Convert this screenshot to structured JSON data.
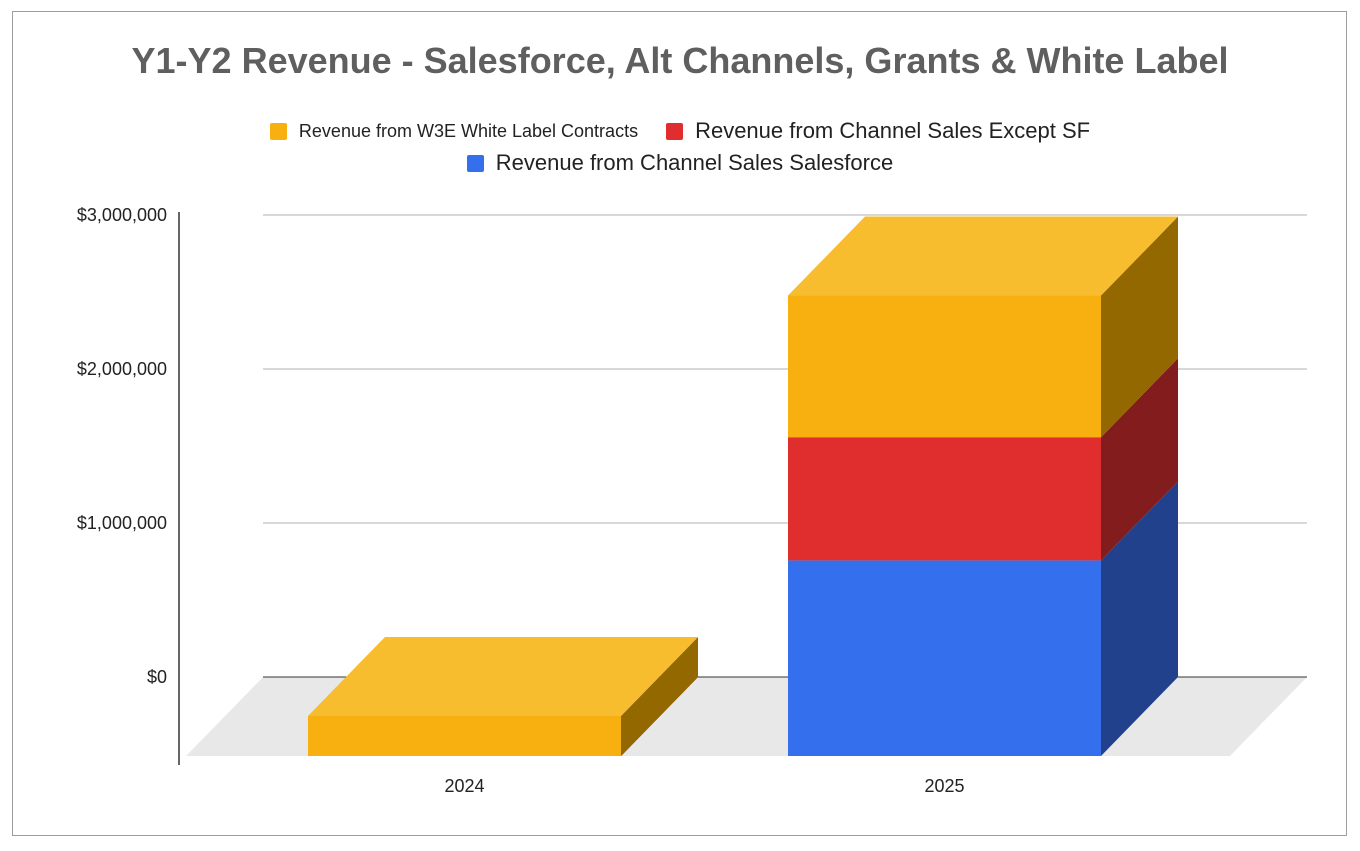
{
  "chart_data": {
    "type": "bar",
    "stacked": true,
    "three_d": true,
    "title": "Y1-Y2 Revenue - Salesforce, Alt Channels, Grants & White Label",
    "xlabel": "",
    "ylabel": "",
    "categories": [
      "2024",
      "2025"
    ],
    "series": [
      {
        "name": "Revenue from Channel Sales Salesforce",
        "values": [
          0,
          1270000
        ],
        "color": "#3470ee",
        "side_color": "#21418c",
        "top_color": "#5a8cf2"
      },
      {
        "name": "Revenue from Channel Sales Except SF",
        "values": [
          0,
          800000
        ],
        "color": "#e02d2d",
        "side_color": "#831c1c",
        "top_color": "#e85a5a"
      },
      {
        "name": "Revenue from W3E White Label Contracts",
        "values": [
          260000,
          920000
        ],
        "color": "#f8b011",
        "side_color": "#946800",
        "top_color": "#f8bd2e"
      }
    ],
    "ylim": [
      0,
      3000000
    ],
    "yticks": [
      {
        "value": 0,
        "label": "$0"
      },
      {
        "value": 1000000,
        "label": "$1,000,000"
      },
      {
        "value": 2000000,
        "label": "$2,000,000"
      },
      {
        "value": 3000000,
        "label": "$3,000,000"
      }
    ],
    "grid": true,
    "legend_position": "top",
    "colors": {
      "title": "#5f5f5f",
      "text": "#222222",
      "gridline": "#cccccc",
      "floor": "#e8e8e8",
      "border": "#9e9e9e"
    }
  },
  "legend": {
    "row1": [
      {
        "name": "Revenue from W3E White Label Contracts",
        "color": "#f8b011"
      },
      {
        "name": "Revenue from Channel Sales Except SF",
        "color": "#e02d2d"
      }
    ],
    "row2": [
      {
        "name": "Revenue from Channel Sales Salesforce",
        "color": "#3470ee"
      }
    ]
  }
}
